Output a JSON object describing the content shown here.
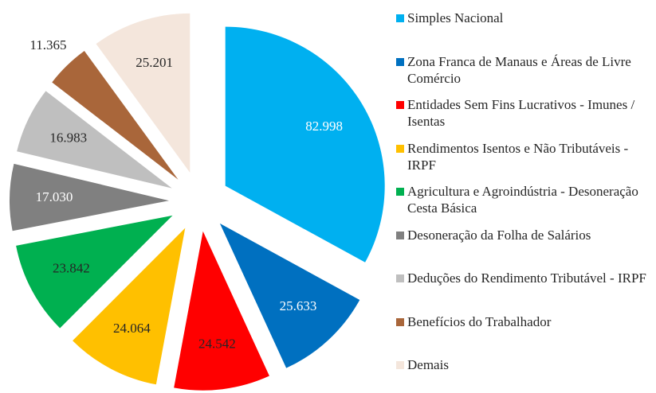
{
  "chart_data": {
    "type": "pie",
    "categories": [
      "Simples Nacional",
      "Zona Franca de Manaus e Áreas de Livre Comércio",
      "Entidades Sem Fins Lucrativos - Imunes / Isentas",
      "Rendimentos Isentos e Não Tributáveis - IRPF",
      "Agricultura e Agroindústria - Desoneração Cesta Básica",
      "Desoneração da Folha de Salários",
      "Deduções do Rendimento Tributável - IRPF",
      "Benefícios do Trabalhador",
      "Demais"
    ],
    "values": [
      82.998,
      25.633,
      24.542,
      24.064,
      23.842,
      17.03,
      16.983,
      11.365,
      25.201
    ],
    "value_labels": [
      "82.998",
      "25.633",
      "24.542",
      "24.064",
      "23.842",
      "17.030",
      "16.983",
      "11.365",
      "25.201"
    ],
    "colors": [
      "#00b0f0",
      "#0070c0",
      "#ff0000",
      "#ffc000",
      "#00b050",
      "#808080",
      "#bfbfbf",
      "#a9663a",
      "#f4e6dc"
    ],
    "label_colors": [
      "#ffffff",
      "#ffffff",
      "#262626",
      "#262626",
      "#262626",
      "#ffffff",
      "#262626",
      "#262626",
      "#262626"
    ],
    "legend": "right"
  }
}
